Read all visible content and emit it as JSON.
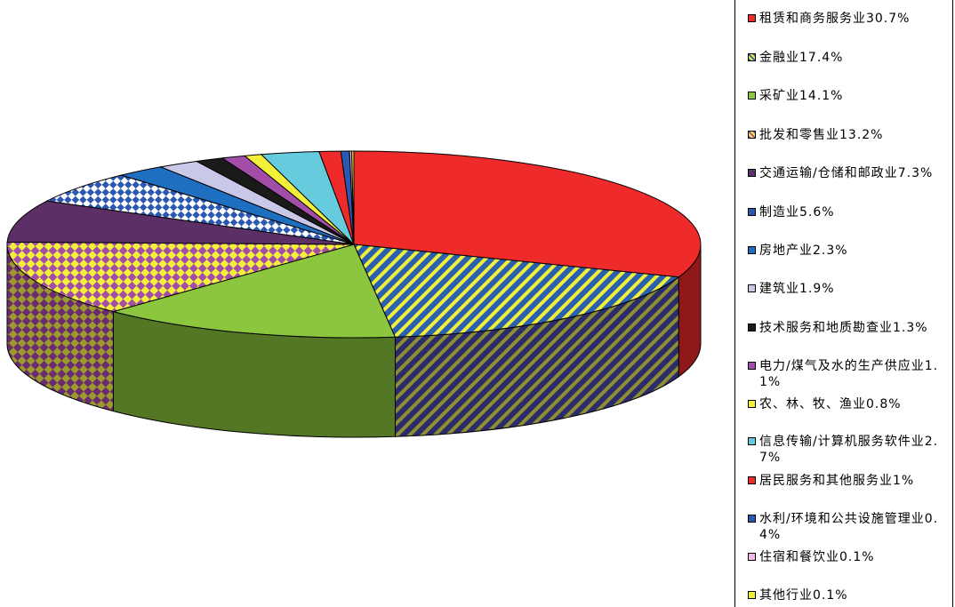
{
  "chart_data": {
    "type": "pie",
    "three_d": true,
    "legend_position": "right",
    "slices": [
      {
        "label": "租赁和商务服务业30.7%",
        "value": 30.7,
        "color": "#ee2a2a",
        "pattern": "solid"
      },
      {
        "label": "金融业17.4%",
        "value": 17.4,
        "color": "#2b5fb0",
        "pattern": "stripes"
      },
      {
        "label": "采矿业14.1%",
        "value": 14.1,
        "color": "#8cc63e",
        "pattern": "solid"
      },
      {
        "label": "批发和零售业13.2%",
        "value": 13.2,
        "color": "#a24ea8",
        "pattern": "checker"
      },
      {
        "label": "交通运输/仓储和邮政业7.3%",
        "value": 7.3,
        "color": "#5c2f66",
        "pattern": "solid"
      },
      {
        "label": "制造业5.6%",
        "value": 5.6,
        "color": "#2b58b0",
        "pattern": "diamond"
      },
      {
        "label": "房地产业2.3%",
        "value": 2.3,
        "color": "#1f6fc0",
        "pattern": "solid"
      },
      {
        "label": "建筑业1.9%",
        "value": 1.9,
        "color": "#c9c8e8",
        "pattern": "solid"
      },
      {
        "label": "技术服务和地质勘查业1.3%",
        "value": 1.3,
        "color": "#1a1a1a",
        "pattern": "solid"
      },
      {
        "label": "电力/煤气及水的生产供应业1.1%",
        "value": 1.1,
        "color": "#a24ea8",
        "pattern": "solid"
      },
      {
        "label": "农、林、牧、渔业0.8%",
        "value": 0.8,
        "color": "#f3f03a",
        "pattern": "solid"
      },
      {
        "label": "信息传输/计算机服务软件业2.7%",
        "value": 2.7,
        "color": "#66ccdd",
        "pattern": "solid"
      },
      {
        "label": "居民服务和其他服务业1%",
        "value": 1,
        "color": "#ee2a2a",
        "pattern": "solid"
      },
      {
        "label": "水利/环境和公共设施管理业0.4%",
        "value": 0.4,
        "color": "#2b58b0",
        "pattern": "solid"
      },
      {
        "label": "住宿和餐饮业0.1%",
        "value": 0.1,
        "color": "#f4b8e6",
        "pattern": "solid"
      },
      {
        "label": "其他行业0.1%",
        "value": 0.1,
        "color": "#f3f03a",
        "pattern": "solid"
      }
    ]
  }
}
